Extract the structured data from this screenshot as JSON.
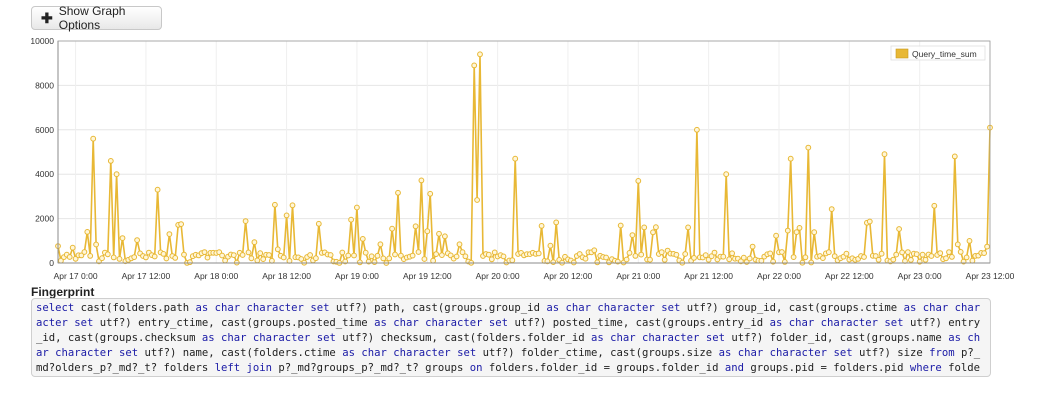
{
  "toolbar": {
    "show_graph_options_label": "Show Graph Options"
  },
  "chart_data": {
    "type": "line",
    "series": [
      {
        "name": "Query_time_sum",
        "color": "#e8b835"
      }
    ],
    "legend_position": "top-right",
    "ylim": [
      0,
      10000
    ],
    "y_ticks": [
      0,
      2000,
      4000,
      6000,
      8000,
      10000
    ],
    "y_tick_labels": [
      "0",
      "2000",
      "4000",
      "6000",
      "8000",
      "10000"
    ],
    "xlim": [
      "Apr 16 21:00",
      "Apr 23 12:00"
    ],
    "x_ticks": [
      "Apr 17 0:00",
      "Apr 17 12:00",
      "Apr 18 0:00",
      "Apr 18 12:00",
      "Apr 19 0:00",
      "Apr 19 12:00",
      "Apr 20 0:00",
      "Apr 20 12:00",
      "Apr 21 0:00",
      "Apr 21 12:00",
      "Apr 22 0:00",
      "Apr 22 12:00",
      "Apr 23 0:00",
      "Apr 23 12:00"
    ],
    "grid": true,
    "peaks": [
      {
        "x": "Apr 17 3:00",
        "y": 5600
      },
      {
        "x": "Apr 17 6:00",
        "y": 4600
      },
      {
        "x": "Apr 17 7:00",
        "y": 4000
      },
      {
        "x": "Apr 17 14:00",
        "y": 3300
      },
      {
        "x": "Apr 18 13:00",
        "y": 2600
      },
      {
        "x": "Apr 19 0:00",
        "y": 2500
      },
      {
        "x": "Apr 19 21:00",
        "y": 9400
      },
      {
        "x": "Apr 19 20:00",
        "y": 8900
      },
      {
        "x": "Apr 20 3:00",
        "y": 4700
      },
      {
        "x": "Apr 21 0:00",
        "y": 3700
      },
      {
        "x": "Apr 21 10:00",
        "y": 6000
      },
      {
        "x": "Apr 21 15:00",
        "y": 4000
      },
      {
        "x": "Apr 22 2:00",
        "y": 4700
      },
      {
        "x": "Apr 22 5:00",
        "y": 5200
      },
      {
        "x": "Apr 22 18:00",
        "y": 4900
      },
      {
        "x": "Apr 23 6:00",
        "y": 4800
      },
      {
        "x": "Apr 23 12:00",
        "y": 6100
      }
    ]
  },
  "fingerprint": {
    "title": "Fingerprint",
    "query": "select cast(folders.path as char character set utf?) path, cast(groups.group_id as char character set utf?) group_id, cast(groups.ctime as char character set utf?) entry_ctime, cast(groups.posted_time as char character set utf?) posted_time, cast(groups.entry_id as char character set utf?) entry_id, cast(groups.checksum as char character set utf?) checksum, cast(folders.folder_id as char character set utf?) folder_id, cast(groups.name as char character set utf?) name, cast(folders.ctime as char character set utf?) folder_ctime, cast(groups.size as char character set utf?) size from p?_md?olders_p?_md?_t? folders left join p?_md?groups_p?_md?_t? groups on folders.folder_id = groups.folder_id and groups.pid = folders.pid where folders.pid = ? order by path desc"
  }
}
